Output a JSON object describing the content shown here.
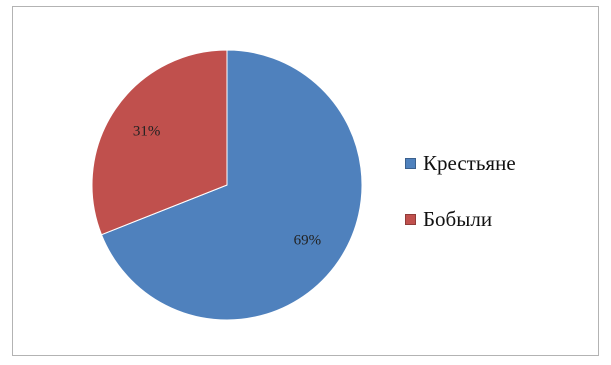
{
  "chart_data": {
    "type": "pie",
    "categories": [
      "Крестьяне",
      "Бобыли"
    ],
    "values": [
      69,
      31
    ],
    "value_labels": [
      "69%",
      "31%"
    ],
    "colors": [
      "#4F81BD",
      "#C0504D"
    ],
    "legend_position": "right",
    "start_angle": "12 o'clock, clockwise"
  }
}
